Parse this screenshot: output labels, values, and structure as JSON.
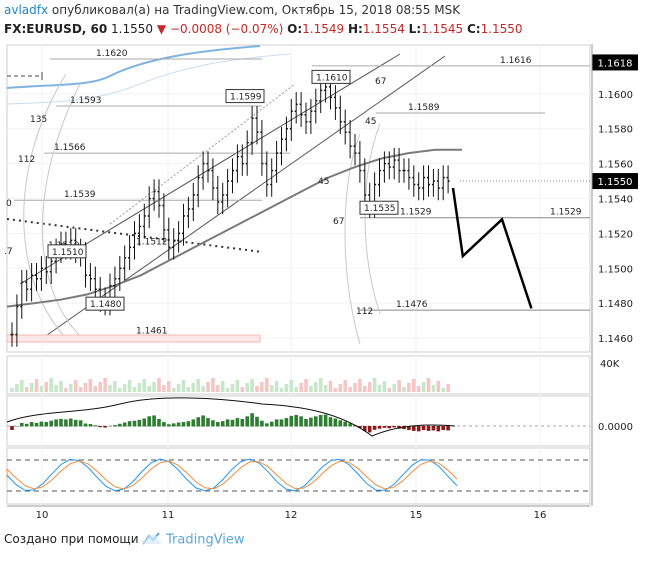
{
  "header": {
    "author": "avladfx",
    "published": "опубликовал(а) на TradingView.com, Октябрь 15, 2018 08:55 MSK",
    "symbol": "FX:EURUSD, 60",
    "last": "1.1550",
    "change": "−0.0008 (−0.07%)",
    "o_label": "O:",
    "o": "1.1549",
    "h_label": "H:",
    "h": "1.1554",
    "l_label": "L:",
    "l": "1.1545",
    "c_label": "C:",
    "c": "1.1550"
  },
  "footer": {
    "created": "Создано при помощи",
    "brand": "TradingView"
  },
  "colors": {
    "candle": "#111111",
    "trend": "#555555",
    "ma": "#7a7a7a",
    "blue_band": "#7fb3e0",
    "fib": "#aaaaaa",
    "forecast": "#000000",
    "hist_green": "#2e7d32",
    "hist_red": "#8b1a1a",
    "stoch_blue": "#2196f3",
    "stoch_orange": "#f08c3c",
    "price_tag": "#000000"
  },
  "chart_data": {
    "type": "candlestick",
    "x_ticks": [
      "10",
      "11",
      "12",
      "15",
      "16"
    ],
    "y_ticks": [
      "1.1600",
      "1.1580",
      "1.1560",
      "1.1540",
      "1.1520",
      "1.1500",
      "1.1480",
      "1.1460"
    ],
    "ylim": [
      1.1452,
      1.1628
    ],
    "last_price": "1.1550",
    "marker_price": "1.1618",
    "volume_label": "40K",
    "osc_label": "0.0000",
    "closes": [
      1.1462,
      1.1478,
      1.1492,
      1.1488,
      1.1496,
      1.1494,
      1.15,
      1.1498,
      1.1504,
      1.151,
      1.1514,
      1.1512,
      1.1516,
      1.151,
      1.1508,
      1.1496,
      1.1494,
      1.1488,
      1.1482,
      1.148,
      1.149,
      1.1494,
      1.15,
      1.1506,
      1.1512,
      1.152,
      1.1524,
      1.153,
      1.154,
      1.1544,
      1.1536,
      1.1522,
      1.1512,
      1.1516,
      1.152,
      1.153,
      1.1534,
      1.1542,
      1.1552,
      1.156,
      1.1556,
      1.1546,
      1.1538,
      1.1542,
      1.155,
      1.1556,
      1.1564,
      1.156,
      1.1572,
      1.1586,
      1.1578,
      1.156,
      1.1548,
      1.1556,
      1.1566,
      1.1574,
      1.158,
      1.159,
      1.1594,
      1.1588,
      1.1584,
      1.159,
      1.1596,
      1.1602,
      1.1604,
      1.1598,
      1.1592,
      1.1584,
      1.1578,
      1.157,
      1.1566,
      1.1556,
      1.1542,
      1.1536,
      1.1548,
      1.1556,
      1.156,
      1.1558,
      1.1562,
      1.1556,
      1.1556,
      1.1552,
      1.1548,
      1.1546,
      1.1552,
      1.1548,
      1.155,
      1.1546,
      1.1552,
      1.155
    ],
    "moving_average": [
      1.1478,
      1.148,
      1.1482,
      1.1485,
      1.149,
      1.1496,
      1.1504,
      1.1512,
      1.152,
      1.1528,
      1.1536,
      1.1544,
      1.1552,
      1.1558,
      1.1563,
      1.1566,
      1.1568,
      1.1568
    ],
    "levels": [
      {
        "label": "1.1620",
        "price": 1.162
      },
      {
        "label": "1.1593",
        "price": 1.1593
      },
      {
        "label": "1.1566",
        "price": 1.1566
      },
      {
        "label": "1.1539",
        "price": 1.1539
      },
      {
        "label": "1.1510",
        "price": 1.151
      },
      {
        "label": "1.1512",
        "price": 1.1512
      },
      {
        "label": "1.1461",
        "price": 1.1461
      },
      {
        "label": "1.1616",
        "price": 1.1616
      },
      {
        "label": "1.1589",
        "price": 1.1589
      },
      {
        "label": "1.1529",
        "price": 1.1529
      },
      {
        "label": "1.1529",
        "price": 1.1529
      },
      {
        "label": "1.1476",
        "price": 1.1476
      }
    ],
    "boxed_labels": [
      {
        "label": "1.1599",
        "price": 1.1599
      },
      {
        "label": "1.1610",
        "price": 1.161
      },
      {
        "label": "1.1535",
        "price": 1.1535
      },
      {
        "label": "1.1510",
        "price": 1.151
      },
      {
        "label": "1.1480",
        "price": 1.148
      }
    ],
    "fib_labels": [
      "135",
      "112",
      "0",
      ".7",
      "67",
      "45",
      "45",
      "67",
      "112"
    ],
    "forecast_path": [
      {
        "bar": 90,
        "price": 1.1546
      },
      {
        "bar": 92,
        "price": 1.1507
      },
      {
        "bar": 100,
        "price": 1.1528
      },
      {
        "bar": 106,
        "price": 1.1477
      }
    ]
  }
}
